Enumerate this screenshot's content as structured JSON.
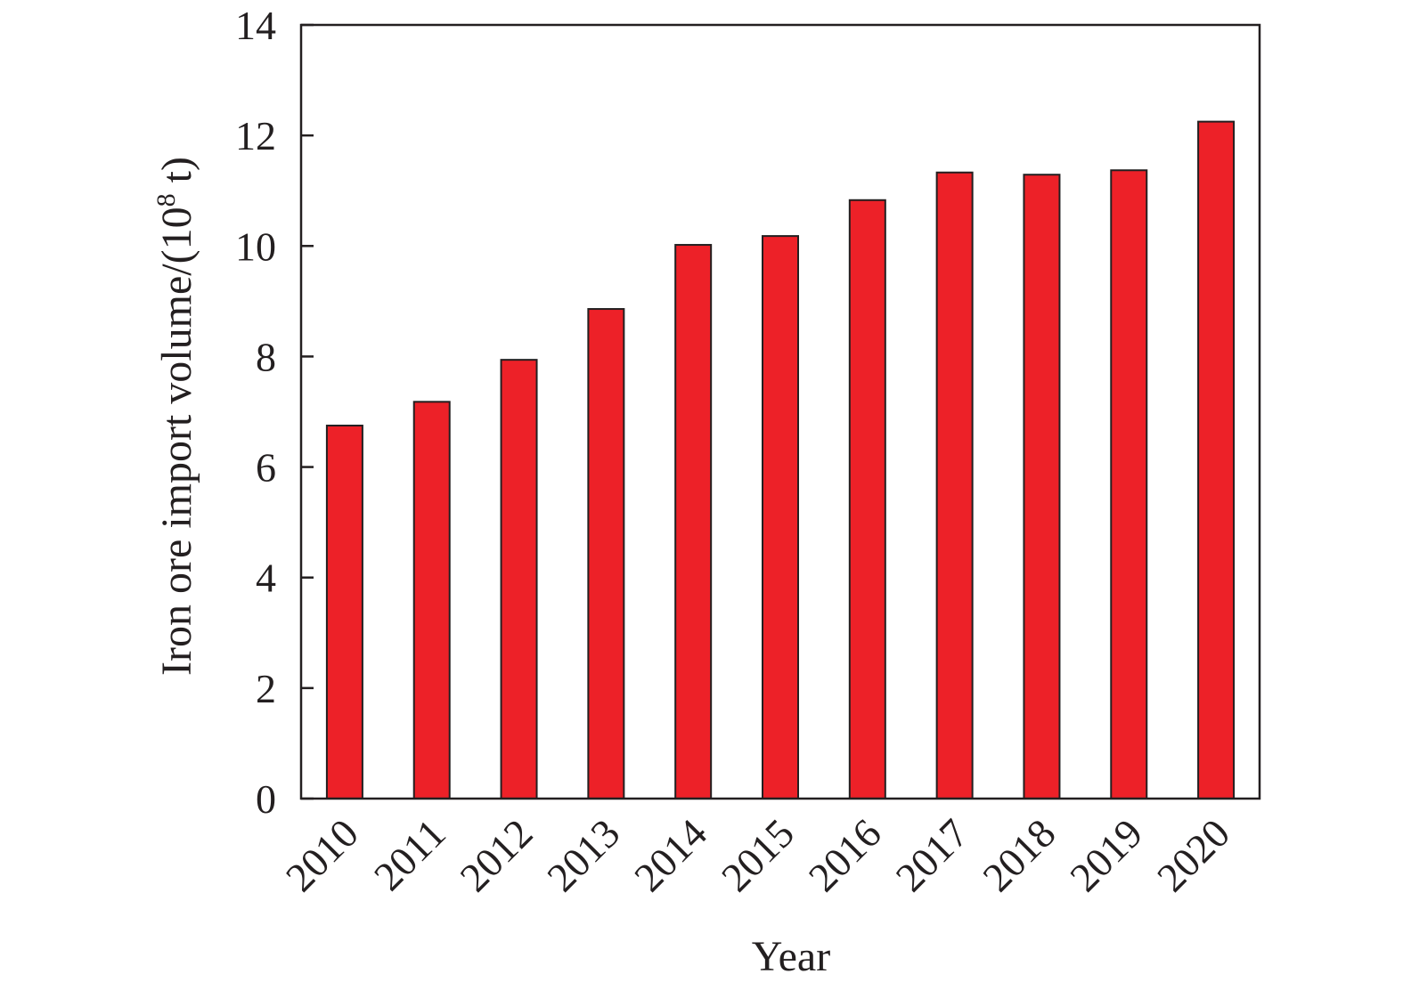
{
  "chart_data": {
    "type": "bar",
    "title": "",
    "xlabel": "Year",
    "ylabel": {
      "prefix": "Iron ore import volume/(10",
      "superscript": "8",
      "suffix": " t)"
    },
    "categories": [
      "2010",
      "2011",
      "2012",
      "2013",
      "2014",
      "2015",
      "2016",
      "2017",
      "2018",
      "2019",
      "2020"
    ],
    "values": [
      6.75,
      7.18,
      7.94,
      8.86,
      10.02,
      10.18,
      10.83,
      11.33,
      11.29,
      11.37,
      12.25
    ],
    "ylim": [
      0,
      14
    ],
    "yticks": [
      "0",
      "2",
      "4",
      "6",
      "8",
      "10",
      "12",
      "14"
    ],
    "bar_color": "#ed2128",
    "grid": false,
    "legend": "none"
  }
}
